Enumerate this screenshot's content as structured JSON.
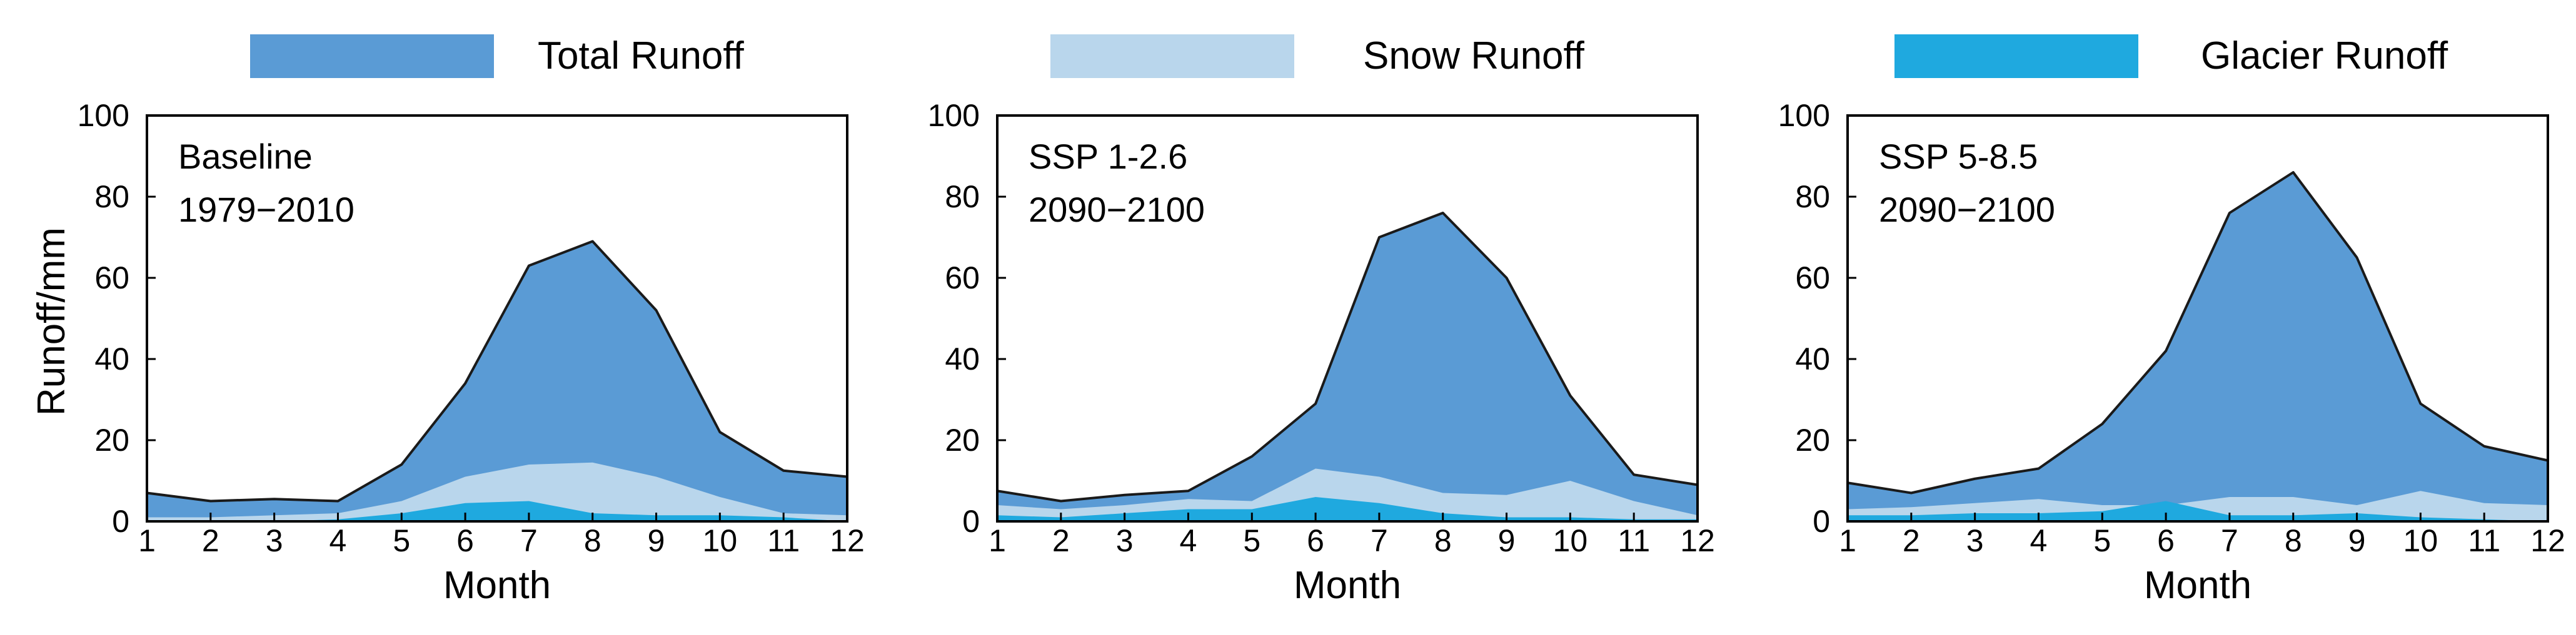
{
  "legend": [
    {
      "label": "Total Runoff",
      "color": "#5a9bd5"
    },
    {
      "label": "Snow Runoff",
      "color": "#b9d6ec"
    },
    {
      "label": "Glacier Runoff",
      "color": "#1fa9df"
    }
  ],
  "chart_data": [
    {
      "type": "area",
      "annotation": [
        "Baseline",
        "1979−2010"
      ],
      "xlabel": "Month",
      "ylabel": "Runoff/mm",
      "x": [
        1,
        2,
        3,
        4,
        5,
        6,
        7,
        8,
        9,
        10,
        11,
        12
      ],
      "xlim": [
        1,
        12
      ],
      "ylim": [
        0,
        100
      ],
      "yticks": [
        0,
        20,
        40,
        60,
        80,
        100
      ],
      "series": [
        {
          "name": "Total Runoff",
          "values": [
            7,
            5,
            5.5,
            5,
            14,
            34,
            63,
            69,
            52,
            22,
            12.5,
            11
          ]
        },
        {
          "name": "Snow Runoff",
          "values": [
            1,
            1,
            1.5,
            2,
            5,
            11,
            14,
            14.5,
            11,
            6,
            2,
            1.5
          ]
        },
        {
          "name": "Glacier Runoff",
          "values": [
            0,
            0,
            0,
            0.5,
            2,
            4.5,
            5,
            2,
            1.5,
            1.5,
            1,
            0
          ]
        }
      ]
    },
    {
      "type": "area",
      "annotation": [
        "SSP 1-2.6",
        "2090−2100"
      ],
      "xlabel": "Month",
      "ylabel": "",
      "x": [
        1,
        2,
        3,
        4,
        5,
        6,
        7,
        8,
        9,
        10,
        11,
        12
      ],
      "xlim": [
        1,
        12
      ],
      "ylim": [
        0,
        100
      ],
      "yticks": [
        0,
        20,
        40,
        60,
        80,
        100
      ],
      "series": [
        {
          "name": "Total Runoff",
          "values": [
            7.5,
            5,
            6.5,
            7.5,
            16,
            29,
            70,
            76,
            60,
            31,
            11.5,
            9
          ]
        },
        {
          "name": "Snow Runoff",
          "values": [
            4,
            3,
            4,
            5.5,
            5,
            13,
            11,
            7,
            6.5,
            10,
            5,
            1.5
          ]
        },
        {
          "name": "Glacier Runoff",
          "values": [
            1.5,
            1,
            2,
            3,
            3,
            6,
            4.5,
            2,
            1,
            1,
            0.5,
            0.5
          ]
        }
      ]
    },
    {
      "type": "area",
      "annotation": [
        "SSP 5-8.5",
        "2090−2100"
      ],
      "xlabel": "Month",
      "ylabel": "",
      "x": [
        1,
        2,
        3,
        4,
        5,
        6,
        7,
        8,
        9,
        10,
        11,
        12
      ],
      "xlim": [
        1,
        12
      ],
      "ylim": [
        0,
        100
      ],
      "yticks": [
        0,
        20,
        40,
        60,
        80,
        100
      ],
      "series": [
        {
          "name": "Total Runoff",
          "values": [
            9.5,
            7,
            10.5,
            13,
            24,
            42,
            76,
            86,
            65,
            29,
            18.5,
            15
          ]
        },
        {
          "name": "Snow Runoff",
          "values": [
            3,
            3.5,
            4.5,
            5.5,
            4,
            4,
            6,
            6,
            4,
            7.5,
            4.5,
            4
          ]
        },
        {
          "name": "Glacier Runoff",
          "values": [
            1.5,
            1.5,
            2,
            2,
            2.5,
            5,
            1.5,
            1.5,
            2,
            1,
            0.5,
            0
          ]
        }
      ]
    }
  ]
}
